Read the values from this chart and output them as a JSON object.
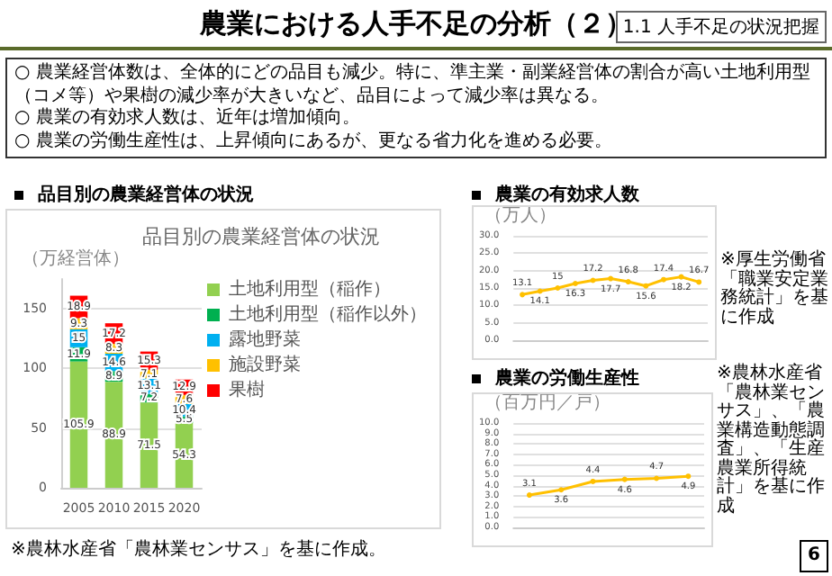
{
  "chart_data": [
    {
      "type": "bar",
      "title": "品目別の農業経営体の状況",
      "subtitle": "品目別の農業経営体の状況",
      "ylabel": "（万経営体）",
      "categories": [
        "2005",
        "2010",
        "2015",
        "2020"
      ],
      "stacked": true,
      "ylim": [
        0,
        175
      ],
      "yticks": [
        0,
        50,
        100,
        150
      ],
      "grid": "y",
      "legend": "right",
      "data_labels": true,
      "series": [
        {
          "name": "土地利用型（稲作）",
          "color": "#92d050",
          "values": [
            105.9,
            88.9,
            71.5,
            54.3
          ]
        },
        {
          "name": "土地利用型（稲作以外）",
          "color": "#00b050",
          "values": [
            11.9,
            8.9,
            7.2,
            5.5
          ]
        },
        {
          "name": "露地野菜",
          "color": "#00b0f0",
          "values": [
            15.0,
            14.6,
            13.1,
            10.4
          ]
        },
        {
          "name": "施設野菜",
          "color": "#ffc000",
          "values": [
            9.3,
            8.3,
            7.1,
            7.6
          ]
        },
        {
          "name": "果樹",
          "color": "#ff0000",
          "values": [
            18.9,
            17.2,
            15.3,
            12.9
          ]
        }
      ],
      "annotations": [
        "農業における人手不足の分析（２）",
        "1.1 人手不足の状況把握",
        "○ 農業経営体数は、全体的にどの品目も減少。特に、準主業・副業経営体の割合が高い土地利用型（コメ等）や果樹の減少率が大きいなど、品目によって減少率は異なる。",
        "○ 農業の有効求人数は、近年は増加傾向。",
        "○ 農業の労働生産性は、上昇傾向にあるが、更なる省力化を進める必要。",
        "※農林水産省「農林業センサス」を基に作成。",
        "6"
      ]
    },
    {
      "type": "line",
      "title": "農業の有効求人数",
      "ylabel": "（万人）",
      "categories": [
        null,
        null,
        null,
        null,
        null,
        null,
        null,
        null,
        null,
        null,
        null
      ],
      "ylim": [
        0,
        30
      ],
      "yticks": [
        {
          "value": 0,
          "label": "0.0"
        },
        {
          "value": 5,
          "label": "5.0"
        },
        {
          "value": 10,
          "label": "10.0"
        },
        {
          "value": 15,
          "label": "15.0"
        },
        {
          "value": 20,
          "label": "20.0"
        },
        {
          "value": 25,
          "label": "25.0"
        },
        {
          "value": 30,
          "label": "30.0"
        }
      ],
      "grid": "y",
      "marker": "circle",
      "line_style": "solid",
      "data_labels": true,
      "series": [
        {
          "color": "#ffc000",
          "values": [
            13.1,
            14.1,
            15.0,
            16.3,
            17.2,
            17.7,
            16.8,
            15.6,
            17.4,
            18.2,
            16.7
          ]
        }
      ],
      "annotations": [
        "※厚生労働省「職業安定業務統計」を基に作成"
      ]
    },
    {
      "type": "line",
      "title": "農業の労働生産性",
      "ylabel": "（百万円／戸）",
      "categories": [
        null,
        null,
        null,
        null,
        null,
        null
      ],
      "ylim": [
        0,
        10
      ],
      "yticks": [
        {
          "value": 0,
          "label": "0.0"
        },
        {
          "value": 1,
          "label": "1.0"
        },
        {
          "value": 2,
          "label": "2.0"
        },
        {
          "value": 3,
          "label": "3.0"
        },
        {
          "value": 4,
          "label": "4.0"
        },
        {
          "value": 5,
          "label": "5.0"
        },
        {
          "value": 6,
          "label": "6.0"
        },
        {
          "value": 7,
          "label": "7.0"
        },
        {
          "value": 8,
          "label": "8.0"
        },
        {
          "value": 9,
          "label": "9.0"
        },
        {
          "value": 10,
          "label": "10.0"
        }
      ],
      "grid": "y",
      "marker": "circle",
      "line_style": "solid",
      "data_labels": true,
      "series": [
        {
          "color": "#ffc000",
          "values": [
            3.1,
            3.6,
            4.4,
            4.6,
            4.7,
            4.9
          ]
        }
      ],
      "annotations": [
        "※農林水産省「農林業センサス」、「農業構造動態調査」、「生産農業所得統計」を基に作成"
      ]
    }
  ]
}
